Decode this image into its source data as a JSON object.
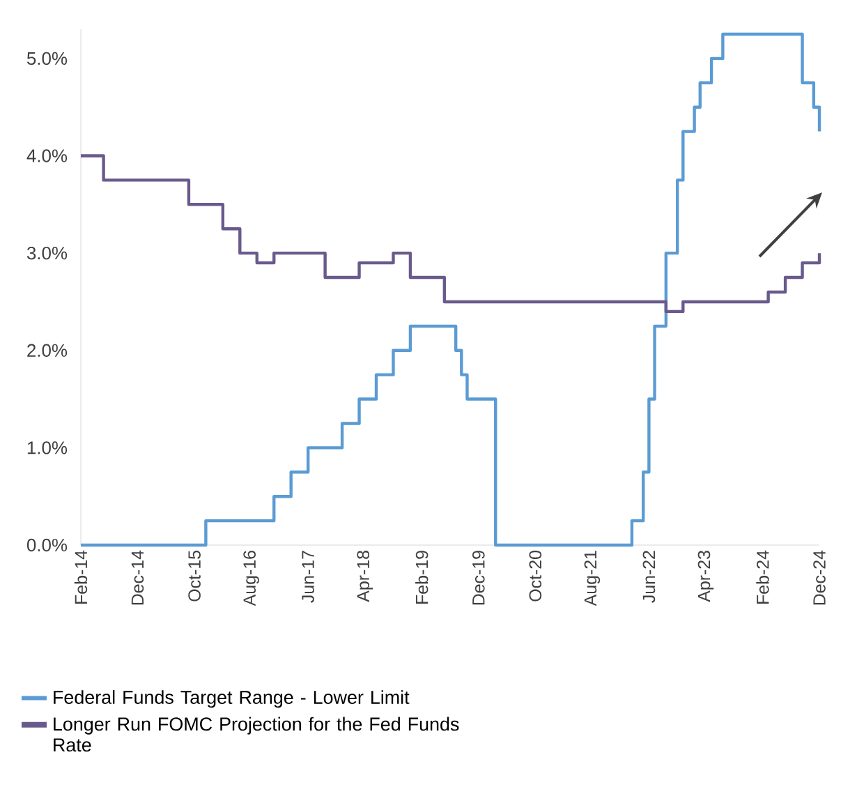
{
  "chart_data": {
    "type": "step",
    "legend": "bottom",
    "xlim": [
      "2014-02",
      "2024-12"
    ],
    "xticks": [
      {
        "value": "2014-02",
        "label": "Feb-14"
      },
      {
        "value": "2014-12",
        "label": "Dec-14"
      },
      {
        "value": "2015-10",
        "label": "Oct-15"
      },
      {
        "value": "2016-08",
        "label": "Aug-16"
      },
      {
        "value": "2017-06",
        "label": "Jun-17"
      },
      {
        "value": "2018-04",
        "label": "Apr-18"
      },
      {
        "value": "2019-02",
        "label": "Feb-19"
      },
      {
        "value": "2019-12",
        "label": "Dec-19"
      },
      {
        "value": "2020-10",
        "label": "Oct-20"
      },
      {
        "value": "2021-08",
        "label": "Aug-21"
      },
      {
        "value": "2022-06",
        "label": "Jun-22"
      },
      {
        "value": "2023-04",
        "label": "Apr-23"
      },
      {
        "value": "2024-02",
        "label": "Feb-24"
      },
      {
        "value": "2024-12",
        "label": "Dec-24"
      }
    ],
    "ylim": [
      0,
      5.3
    ],
    "yticks": [
      {
        "value": 0,
        "label": "0.0%"
      },
      {
        "value": 1,
        "label": "1.0%"
      },
      {
        "value": 2,
        "label": "2.0%"
      },
      {
        "value": 3,
        "label": "3.0%"
      },
      {
        "value": 4,
        "label": "4.0%"
      },
      {
        "value": 5,
        "label": "5.0%"
      }
    ],
    "series": [
      {
        "name": "Federal Funds Target Range - Lower Limit",
        "color": "#5b9bd3",
        "x": [
          "2014-02",
          "2015-12",
          "2016-12",
          "2017-03",
          "2017-06",
          "2017-12",
          "2018-03",
          "2018-06",
          "2018-09",
          "2018-12",
          "2019-08",
          "2019-09",
          "2019-10",
          "2020-03",
          "2022-03",
          "2022-05",
          "2022-06",
          "2022-07",
          "2022-09",
          "2022-11",
          "2022-12",
          "2023-02",
          "2023-03",
          "2023-05",
          "2023-07",
          "2024-09",
          "2024-11",
          "2024-12"
        ],
        "values": [
          0,
          0.25,
          0.5,
          0.75,
          1.0,
          1.25,
          1.5,
          1.75,
          2.0,
          2.25,
          2.0,
          1.75,
          1.5,
          0,
          0.25,
          0.75,
          1.5,
          2.25,
          3.0,
          3.75,
          4.25,
          4.5,
          4.75,
          5.0,
          5.25,
          4.75,
          4.5,
          4.25
        ]
      },
      {
        "name": "Longer Run FOMC Projection for the Fed Funds Rate",
        "color": "#6a5a8c",
        "x": [
          "2014-02",
          "2014-06",
          "2015-09",
          "2016-03",
          "2016-06",
          "2016-09",
          "2016-12",
          "2017-09",
          "2018-03",
          "2018-09",
          "2018-12",
          "2019-06",
          "2022-09",
          "2022-12",
          "2024-03",
          "2024-06",
          "2024-09",
          "2024-12"
        ],
        "values": [
          4.0,
          3.75,
          3.5,
          3.25,
          3.0,
          2.9,
          3.0,
          2.75,
          2.9,
          3.0,
          2.75,
          2.5,
          2.4,
          2.5,
          2.6,
          2.75,
          2.9,
          3.0
        ]
      }
    ]
  }
}
